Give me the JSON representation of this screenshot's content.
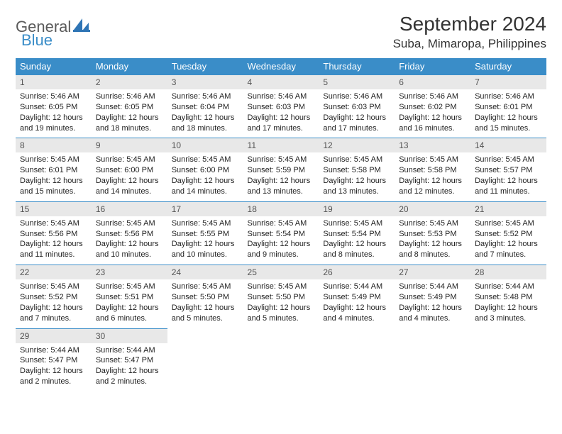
{
  "brand": {
    "word1": "General",
    "word2": "Blue"
  },
  "title": "September 2024",
  "location": "Suba, Mimaropa, Philippines",
  "colors": {
    "accent": "#3a8dc8",
    "daynum_bg": "#e8e8e8",
    "text": "#222222",
    "border": "#3a8dc8"
  },
  "weekdays": [
    "Sunday",
    "Monday",
    "Tuesday",
    "Wednesday",
    "Thursday",
    "Friday",
    "Saturday"
  ],
  "weeks": [
    [
      {
        "n": "1",
        "sr": "5:46 AM",
        "ss": "6:05 PM",
        "dl": "12 hours and 19 minutes."
      },
      {
        "n": "2",
        "sr": "5:46 AM",
        "ss": "6:05 PM",
        "dl": "12 hours and 18 minutes."
      },
      {
        "n": "3",
        "sr": "5:46 AM",
        "ss": "6:04 PM",
        "dl": "12 hours and 18 minutes."
      },
      {
        "n": "4",
        "sr": "5:46 AM",
        "ss": "6:03 PM",
        "dl": "12 hours and 17 minutes."
      },
      {
        "n": "5",
        "sr": "5:46 AM",
        "ss": "6:03 PM",
        "dl": "12 hours and 17 minutes."
      },
      {
        "n": "6",
        "sr": "5:46 AM",
        "ss": "6:02 PM",
        "dl": "12 hours and 16 minutes."
      },
      {
        "n": "7",
        "sr": "5:46 AM",
        "ss": "6:01 PM",
        "dl": "12 hours and 15 minutes."
      }
    ],
    [
      {
        "n": "8",
        "sr": "5:45 AM",
        "ss": "6:01 PM",
        "dl": "12 hours and 15 minutes."
      },
      {
        "n": "9",
        "sr": "5:45 AM",
        "ss": "6:00 PM",
        "dl": "12 hours and 14 minutes."
      },
      {
        "n": "10",
        "sr": "5:45 AM",
        "ss": "6:00 PM",
        "dl": "12 hours and 14 minutes."
      },
      {
        "n": "11",
        "sr": "5:45 AM",
        "ss": "5:59 PM",
        "dl": "12 hours and 13 minutes."
      },
      {
        "n": "12",
        "sr": "5:45 AM",
        "ss": "5:58 PM",
        "dl": "12 hours and 13 minutes."
      },
      {
        "n": "13",
        "sr": "5:45 AM",
        "ss": "5:58 PM",
        "dl": "12 hours and 12 minutes."
      },
      {
        "n": "14",
        "sr": "5:45 AM",
        "ss": "5:57 PM",
        "dl": "12 hours and 11 minutes."
      }
    ],
    [
      {
        "n": "15",
        "sr": "5:45 AM",
        "ss": "5:56 PM",
        "dl": "12 hours and 11 minutes."
      },
      {
        "n": "16",
        "sr": "5:45 AM",
        "ss": "5:56 PM",
        "dl": "12 hours and 10 minutes."
      },
      {
        "n": "17",
        "sr": "5:45 AM",
        "ss": "5:55 PM",
        "dl": "12 hours and 10 minutes."
      },
      {
        "n": "18",
        "sr": "5:45 AM",
        "ss": "5:54 PM",
        "dl": "12 hours and 9 minutes."
      },
      {
        "n": "19",
        "sr": "5:45 AM",
        "ss": "5:54 PM",
        "dl": "12 hours and 8 minutes."
      },
      {
        "n": "20",
        "sr": "5:45 AM",
        "ss": "5:53 PM",
        "dl": "12 hours and 8 minutes."
      },
      {
        "n": "21",
        "sr": "5:45 AM",
        "ss": "5:52 PM",
        "dl": "12 hours and 7 minutes."
      }
    ],
    [
      {
        "n": "22",
        "sr": "5:45 AM",
        "ss": "5:52 PM",
        "dl": "12 hours and 7 minutes."
      },
      {
        "n": "23",
        "sr": "5:45 AM",
        "ss": "5:51 PM",
        "dl": "12 hours and 6 minutes."
      },
      {
        "n": "24",
        "sr": "5:45 AM",
        "ss": "5:50 PM",
        "dl": "12 hours and 5 minutes."
      },
      {
        "n": "25",
        "sr": "5:45 AM",
        "ss": "5:50 PM",
        "dl": "12 hours and 5 minutes."
      },
      {
        "n": "26",
        "sr": "5:44 AM",
        "ss": "5:49 PM",
        "dl": "12 hours and 4 minutes."
      },
      {
        "n": "27",
        "sr": "5:44 AM",
        "ss": "5:49 PM",
        "dl": "12 hours and 4 minutes."
      },
      {
        "n": "28",
        "sr": "5:44 AM",
        "ss": "5:48 PM",
        "dl": "12 hours and 3 minutes."
      }
    ],
    [
      {
        "n": "29",
        "sr": "5:44 AM",
        "ss": "5:47 PM",
        "dl": "12 hours and 2 minutes."
      },
      {
        "n": "30",
        "sr": "5:44 AM",
        "ss": "5:47 PM",
        "dl": "12 hours and 2 minutes."
      },
      null,
      null,
      null,
      null,
      null
    ]
  ]
}
